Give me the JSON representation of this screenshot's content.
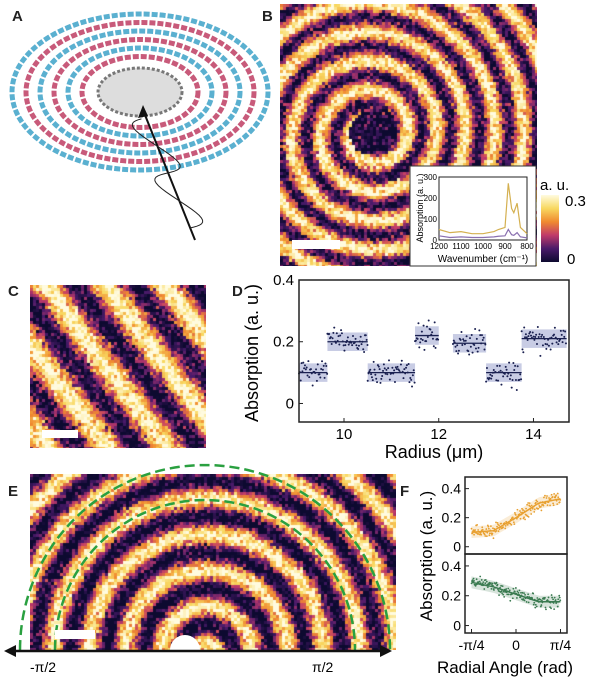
{
  "panels": {
    "A": "A",
    "B": "B",
    "C": "C",
    "D": "D",
    "E": "E",
    "F": "F"
  },
  "colorbar": {
    "unit": "a. u.",
    "max": "0.3",
    "min": "0",
    "colors": [
      "#0d0a30",
      "#4a1a6a",
      "#c03a6a",
      "#f08a30",
      "#f8d860",
      "#fffbe0"
    ]
  },
  "panel_e": {
    "left_label": "-π/2",
    "right_label": "π/2",
    "ring_color": "#2aa040"
  },
  "chart_data": [
    {
      "panel": "B inset",
      "type": "line",
      "xlabel": "Wavenumber (cm⁻¹)",
      "ylabel": "Absorption (a. u.)",
      "xlim": [
        1200,
        800
      ],
      "ylim": [
        0,
        300
      ],
      "xticks": [
        "1200",
        "1100",
        "1000",
        "900",
        "800"
      ],
      "yticks": [
        "0",
        "100",
        "200",
        "300"
      ],
      "series": [
        {
          "color": "#d4b050",
          "x": [
            1200,
            1150,
            1100,
            1050,
            1000,
            950,
            930,
            900,
            885,
            870,
            860,
            845,
            830,
            800
          ],
          "values": [
            50,
            35,
            40,
            30,
            30,
            40,
            50,
            60,
            270,
            150,
            130,
            175,
            60,
            30
          ]
        },
        {
          "color": "#8a70b0",
          "x": [
            1200,
            1150,
            1100,
            1050,
            1000,
            950,
            930,
            900,
            885,
            870,
            860,
            845,
            830,
            800
          ],
          "values": [
            20,
            12,
            15,
            12,
            12,
            15,
            18,
            20,
            50,
            25,
            22,
            35,
            15,
            10
          ]
        }
      ]
    },
    {
      "panel": "D",
      "type": "scatter",
      "xlabel": "Radius (μm)",
      "ylabel": "Absorption (a. u.)",
      "xlim": [
        9.05,
        14.75
      ],
      "ylim": [
        -0.06,
        0.4
      ],
      "xticks": [
        "10",
        "12",
        "14"
      ],
      "yticks": [
        "0",
        "0.2",
        "0.4"
      ],
      "point_color": "#1a2050",
      "band_color": "#c8cce4",
      "steps": [
        {
          "x": [
            9.05,
            9.65
          ],
          "mean": 0.1
        },
        {
          "x": [
            9.65,
            10.5
          ],
          "mean": 0.2
        },
        {
          "x": [
            10.5,
            11.5
          ],
          "mean": 0.1
        },
        {
          "x": [
            11.5,
            12.0
          ],
          "mean": 0.22
        },
        {
          "x": [
            12.3,
            13.0
          ],
          "mean": 0.195
        },
        {
          "x": [
            13.0,
            13.75
          ],
          "mean": 0.1
        },
        {
          "x": [
            13.75,
            14.7
          ],
          "mean": 0.21
        }
      ]
    },
    {
      "panel": "F",
      "type": "scatter",
      "xlabel": "Radial Angle (rad)",
      "ylabel": "Absorption (a. u.)",
      "xlim": [
        -0.9,
        0.9
      ],
      "xticks": [
        "-π/4",
        "0",
        "π/4"
      ],
      "subplots": [
        {
          "color": "#e8a030",
          "ylim": [
            -0.05,
            0.48
          ],
          "yticks": [
            "0",
            "0.2",
            "0.4"
          ],
          "fit_x": [
            -0.785,
            -0.4,
            0,
            0.4,
            0.785
          ],
          "fit": [
            0.1,
            0.11,
            0.2,
            0.3,
            0.33
          ]
        },
        {
          "color": "#3a7a50",
          "ylim": [
            -0.05,
            0.48
          ],
          "yticks": [
            "0",
            "0.2",
            "0.4"
          ],
          "fit_x": [
            -0.785,
            -0.4,
            0,
            0.4,
            0.785
          ],
          "fit": [
            0.29,
            0.26,
            0.21,
            0.16,
            0.16
          ]
        }
      ]
    }
  ]
}
